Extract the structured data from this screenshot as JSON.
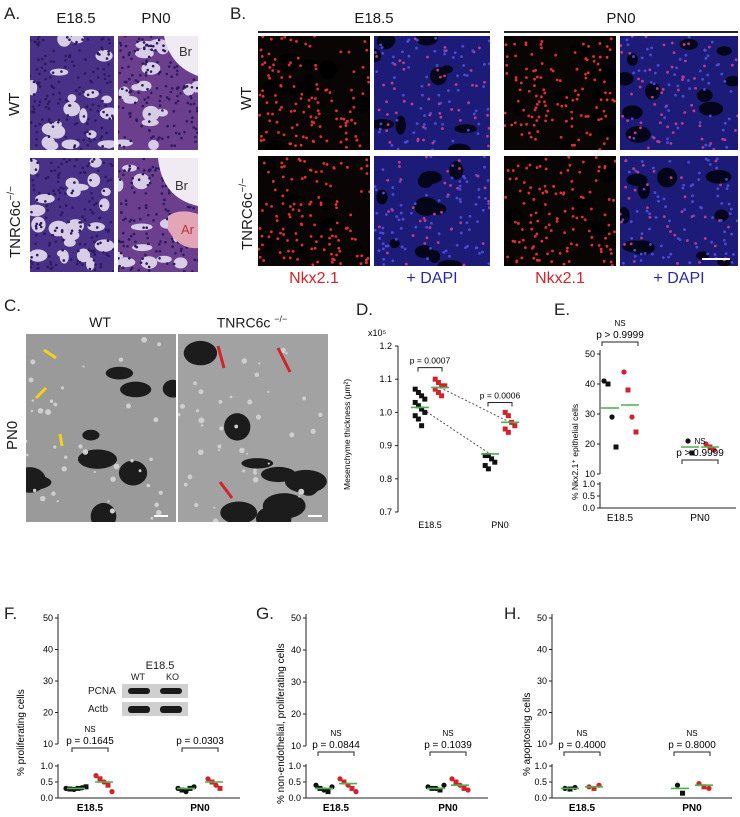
{
  "panel_A": {
    "label": "A.",
    "col_titles": [
      "E18.5",
      "PN0"
    ],
    "row_titles": [
      "WT",
      "TNRC6c"
    ],
    "row2_superscript": "−/−",
    "annotations": {
      "br_top": "Br",
      "br_bottom": "Br",
      "ar": "Ar"
    }
  },
  "panel_B": {
    "label": "B.",
    "group_titles": [
      "E18.5",
      "PN0"
    ],
    "row_titles": [
      "WT",
      "TNRC6c"
    ],
    "row2_superscript": "−/−",
    "bottom_labels": [
      "Nkx2.1",
      "+ DAPI",
      "Nkx2.1",
      "+ DAPI"
    ]
  },
  "panel_C": {
    "label": "C.",
    "col_titles": [
      "WT",
      "TNRC6c"
    ],
    "col2_superscript": "−/−",
    "row_title": "PN0"
  },
  "panel_D": {
    "label": "D.",
    "exponent_label": "x10⁵",
    "ylabel": "Mesenchyme thickness (μm²)",
    "yticks": [
      "1.2",
      "1.1",
      "1.0",
      "0.9",
      "0.8",
      "0.7"
    ],
    "xticks": [
      "E18.5",
      "PN0"
    ],
    "pvalues": [
      "p = 0.0007",
      "p = 0.0006"
    ]
  },
  "panel_E": {
    "label": "E.",
    "ylabel": "% Nkx2.1⁺ epithelial cells",
    "yticks_top": [
      "50",
      "40",
      "30",
      "20",
      "10"
    ],
    "yticks_bottom": [
      "1.0",
      "0.5",
      "0.0"
    ],
    "xticks": [
      "E18.5",
      "PN0"
    ],
    "ns_labels": [
      "NS",
      "NS"
    ],
    "pvalues": [
      "p > 0.9999",
      "p > 0.9999"
    ]
  },
  "panel_F": {
    "label": "F.",
    "ylabel": "% proliferating cells",
    "yticks_top": [
      "50",
      "40",
      "30",
      "20",
      "10"
    ],
    "yticks_bottom": [
      "1.0",
      "0.5",
      "0.0"
    ],
    "xticks": [
      "E18.5",
      "PN0"
    ],
    "ns_label": "NS",
    "pvalues": [
      "p = 0.1645",
      "p = 0.0303"
    ],
    "blot": {
      "title": "E18.5",
      "lanes": [
        "WT",
        "KO"
      ],
      "rows": [
        "PCNA",
        "Actb"
      ]
    }
  },
  "panel_G": {
    "label": "G.",
    "ylabel": "% non-endothelial, proliferating cells",
    "yticks_top": [
      "50",
      "40",
      "30",
      "20",
      "10"
    ],
    "yticks_bottom": [
      "1.0",
      "0.5",
      "0.0"
    ],
    "xticks": [
      "E18.5",
      "PN0"
    ],
    "ns_labels": [
      "NS",
      "NS"
    ],
    "pvalues": [
      "p = 0.0844",
      "p = 0.1039"
    ]
  },
  "panel_H": {
    "label": "H.",
    "ylabel": "% apoptosing cells",
    "yticks_top": [
      "50",
      "40",
      "30",
      "20",
      "10"
    ],
    "yticks_bottom": [
      "1.0",
      "0.5",
      "0.0"
    ],
    "xticks": [
      "E18.5",
      "PN0"
    ],
    "ns_labels": [
      "NS",
      "NS"
    ],
    "pvalues": [
      "p = 0.4000",
      "p = 0.8000"
    ]
  },
  "colors": {
    "wt": "#111111",
    "ko": "#d2232a",
    "mean": "#4caf50",
    "he_bg": "#c9b8d8",
    "he_cell": "#4a2f86",
    "nuc_red": "#e23030",
    "dapi": "#3535b8"
  },
  "chart_data": [
    {
      "type": "scatter",
      "ylabel": "Mesenchyme thickness (μm²)",
      "categories": [
        "E18.5",
        "PN0"
      ],
      "ylim": [
        0.7,
        1.2
      ],
      "series": [
        {
          "values": [
            [
              1.07,
              1.06,
              1.05,
              1.04,
              1.03,
              1.02,
              1.01,
              1.0,
              0.99,
              0.98,
              0.96
            ],
            [
              0.87,
              0.87,
              0.86,
              0.85,
              0.84,
              0.83
            ]
          ]
        },
        {
          "values": [
            [
              1.1,
              1.09,
              1.08,
              1.08,
              1.07,
              1.06,
              1.05
            ],
            [
              1.0,
              0.99,
              0.97,
              0.96,
              0.95,
              0.94
            ]
          ]
        }
      ],
      "means": [
        [
          1.015,
          1.075
        ],
        [
          0.875,
          0.97
        ]
      ]
    },
    {
      "type": "scatter",
      "ylabel": "% Nkx2.1⁺ epithelial cells",
      "categories": [
        "E18.5",
        "PN0"
      ],
      "series": [
        {
          "values": [
            [
              41,
              40,
              29,
              19
            ],
            [
              21,
              17
            ]
          ]
        },
        {
          "values": [
            [
              44,
              38,
              29,
              24
            ],
            [
              20,
              19,
              18
            ]
          ]
        }
      ],
      "means": [
        [
          32,
          33
        ],
        [
          19,
          19
        ]
      ]
    },
    {
      "type": "scatter",
      "ylabel": "% proliferating cells",
      "categories": [
        "E18.5",
        "PN0"
      ],
      "series": [
        {
          "values": [
            [
              0.3,
              0.28,
              0.27,
              0.3,
              0.32,
              0.35
            ],
            [
              0.3,
              0.25,
              0.2,
              0.3,
              0.35
            ]
          ]
        },
        {
          "values": [
            [
              0.7,
              0.6,
              0.5,
              0.4,
              0.2
            ],
            [
              0.6,
              0.5,
              0.4,
              0.3
            ]
          ]
        }
      ],
      "means": [
        [
          0.3,
          0.5
        ],
        [
          0.3,
          0.5
        ]
      ]
    },
    {
      "type": "scatter",
      "ylabel": "% non-endothelial, proliferating cells",
      "categories": [
        "E18.5",
        "PN0"
      ],
      "series": [
        {
          "values": [
            [
              0.4,
              0.3,
              0.25,
              0.2,
              0.35
            ],
            [
              0.35,
              0.3,
              0.3,
              0.25,
              0.4
            ]
          ]
        },
        {
          "values": [
            [
              0.6,
              0.5,
              0.4,
              0.3,
              0.2
            ],
            [
              0.6,
              0.5,
              0.4,
              0.3,
              0.25
            ]
          ]
        }
      ],
      "means": [
        [
          0.3,
          0.45
        ],
        [
          0.3,
          0.4
        ]
      ]
    },
    {
      "type": "scatter",
      "ylabel": "% apoptosing cells",
      "categories": [
        "E18.5",
        "PN0"
      ],
      "series": [
        {
          "values": [
            [
              0.3,
              0.28,
              0.33
            ],
            [
              0.4,
              0.15
            ]
          ]
        },
        {
          "values": [
            [
              0.35,
              0.3,
              0.4
            ],
            [
              0.45,
              0.35,
              0.3
            ]
          ]
        }
      ],
      "means": [
        [
          0.3,
          0.35
        ],
        [
          0.3,
          0.4
        ]
      ]
    }
  ]
}
